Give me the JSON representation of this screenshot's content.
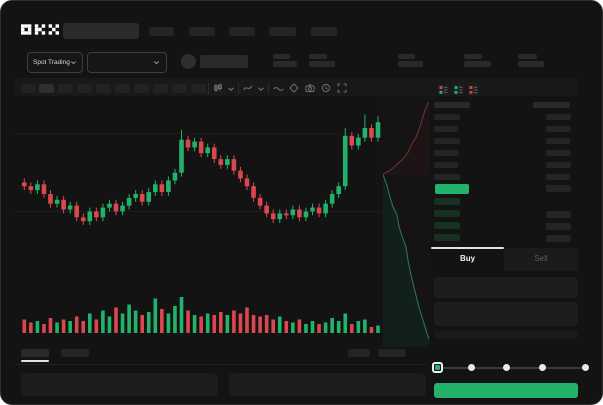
{
  "app": {
    "logo_text": "OKX",
    "background": "#131313",
    "accent_green": "#23b26b",
    "accent_red": "#d9484c"
  },
  "header": {
    "search_placeholder": ""
  },
  "trade_bar": {
    "market_selector_label": "Spot Trading"
  },
  "toolbar": {
    "icons": [
      "candle-type-icon",
      "chevron-down-icon",
      "indicator-icon",
      "chevron-down-icon",
      "wave-line-icon",
      "draw-tool-icon",
      "camera-icon",
      "restore-icon",
      "fullscreen-icon"
    ]
  },
  "order_book": {
    "view_modes": [
      "combined-book-icon",
      "bids-only-icon",
      "asks-only-icon"
    ],
    "price_highlight_color": "#23b26b"
  },
  "trade_form": {
    "tabs": {
      "buy_label": "Buy",
      "sell_label": "Sell",
      "active": "Buy"
    },
    "slider_stop_count": 5,
    "submit_color": "#23b26b"
  },
  "chart_data": {
    "type": "candlestick",
    "title": "",
    "xlabel": "",
    "ylabel": "",
    "legend": [],
    "gridlines_price": [
      81,
      41
    ],
    "colors": {
      "up": "#23b26b",
      "down": "#d9484c",
      "ask_line": "#6e3538",
      "bid_line": "#2f7c52",
      "ask_fill": "#1f1415",
      "bid_fill": "#11201a"
    },
    "candles": {
      "open": [
        56,
        54,
        52,
        55,
        50,
        45,
        47,
        42,
        44,
        38,
        36,
        41,
        38,
        43,
        45,
        41,
        44,
        48,
        50,
        46,
        51,
        55,
        51,
        57,
        61,
        78,
        74,
        77,
        71,
        74,
        68,
        65,
        68,
        62,
        58,
        54,
        48,
        44,
        40,
        37,
        40,
        39,
        42,
        38,
        41,
        43,
        40,
        45,
        50,
        54,
        80,
        75,
        79,
        84,
        79
      ],
      "close": [
        54,
        52,
        55,
        50,
        45,
        47,
        42,
        44,
        38,
        36,
        41,
        38,
        43,
        45,
        41,
        44,
        48,
        50,
        46,
        51,
        55,
        51,
        57,
        61,
        78,
        74,
        77,
        71,
        74,
        68,
        65,
        68,
        62,
        58,
        54,
        48,
        44,
        40,
        37,
        40,
        39,
        42,
        38,
        41,
        43,
        40,
        45,
        50,
        54,
        80,
        75,
        79,
        84,
        79,
        87
      ],
      "high": [
        58,
        56,
        57,
        57,
        52,
        49,
        49,
        46,
        46,
        40,
        43,
        43,
        45,
        47,
        47,
        46,
        50,
        52,
        52,
        53,
        57,
        57,
        59,
        63,
        83,
        80,
        79,
        79,
        76,
        76,
        70,
        70,
        70,
        64,
        60,
        56,
        50,
        46,
        42,
        42,
        42,
        44,
        44,
        43,
        45,
        45,
        47,
        52,
        56,
        84,
        82,
        81,
        91,
        86,
        90
      ],
      "low": [
        52,
        50,
        50,
        48,
        43,
        43,
        40,
        40,
        36,
        34,
        34,
        36,
        36,
        41,
        39,
        39,
        42,
        46,
        44,
        44,
        49,
        49,
        49,
        55,
        59,
        72,
        72,
        69,
        69,
        66,
        63,
        63,
        60,
        56,
        52,
        46,
        42,
        38,
        35,
        35,
        37,
        37,
        36,
        36,
        39,
        38,
        38,
        43,
        48,
        52,
        73,
        73,
        77,
        77,
        77
      ]
    },
    "volume": [
      9,
      7,
      8,
      6,
      10,
      7,
      9,
      8,
      11,
      8,
      13,
      9,
      15,
      11,
      17,
      13,
      19,
      15,
      12,
      14,
      23,
      16,
      13,
      18,
      24,
      15,
      12,
      11,
      13,
      12,
      14,
      12,
      15,
      13,
      17,
      12,
      11,
      12,
      9,
      11,
      8,
      7,
      9,
      6,
      8,
      6,
      7,
      10,
      8,
      13,
      6,
      8,
      9,
      4,
      5
    ],
    "depth": {
      "asks": [
        [
          1,
          0.02
        ],
        [
          0.92,
          0.05
        ],
        [
          0.85,
          0.09
        ],
        [
          0.8,
          0.12
        ],
        [
          0.72,
          0.16
        ],
        [
          0.62,
          0.19
        ],
        [
          0.55,
          0.22
        ],
        [
          0.42,
          0.25
        ],
        [
          0.3,
          0.27
        ],
        [
          0.18,
          0.29
        ],
        [
          0.08,
          0.3
        ],
        [
          0,
          0.31
        ]
      ],
      "bids": [
        [
          0,
          0.31
        ],
        [
          0.08,
          0.35
        ],
        [
          0.15,
          0.4
        ],
        [
          0.22,
          0.44
        ],
        [
          0.3,
          0.47
        ],
        [
          0.35,
          0.52
        ],
        [
          0.42,
          0.56
        ],
        [
          0.5,
          0.6
        ],
        [
          0.55,
          0.66
        ],
        [
          0.62,
          0.72
        ],
        [
          0.7,
          0.78
        ],
        [
          0.78,
          0.84
        ],
        [
          0.88,
          0.9
        ],
        [
          1,
          0.97
        ]
      ]
    }
  }
}
